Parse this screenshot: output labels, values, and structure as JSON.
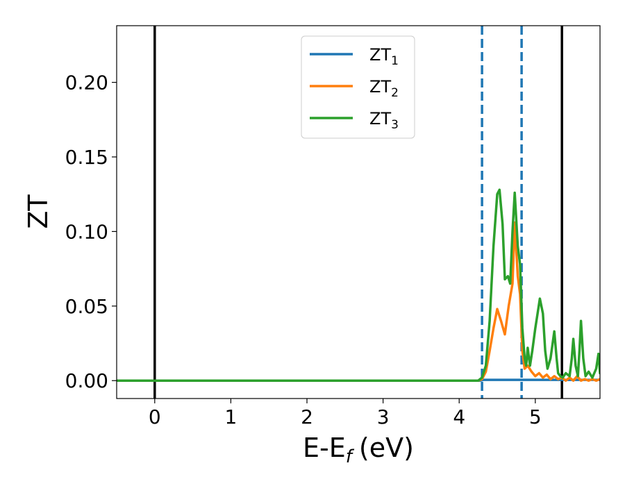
{
  "chart_data": {
    "type": "line",
    "title": "",
    "xlabel": "E-E",
    "xlabel_sub": "f",
    "xlabel_unit": "(eV)",
    "ylabel": "ZT",
    "xlim": [
      -0.5,
      5.85
    ],
    "ylim": [
      -0.012,
      0.238
    ],
    "xticks": [
      0,
      1,
      2,
      3,
      4,
      5
    ],
    "yticks": [
      0.0,
      0.05,
      0.1,
      0.15,
      0.2
    ],
    "xtick_labels": [
      "0",
      "1",
      "2",
      "3",
      "4",
      "5"
    ],
    "ytick_labels": [
      "0.00",
      "0.05",
      "0.10",
      "0.15",
      "0.20"
    ],
    "grid": false,
    "legend_position": "top-center",
    "vlines": [
      {
        "x": 0.0,
        "style": "solid",
        "color": "#000000"
      },
      {
        "x": 5.35,
        "style": "solid",
        "color": "#000000"
      },
      {
        "x": 4.3,
        "style": "dashed",
        "color": "#1f77b4"
      },
      {
        "x": 4.82,
        "style": "dashed",
        "color": "#1f77b4"
      }
    ],
    "series": [
      {
        "name": "ZT",
        "subscript": "1",
        "color": "#1f77b4",
        "x": [
          -0.5,
          4.28,
          4.32,
          5.85
        ],
        "y": [
          0.0,
          0.0,
          0.0005,
          0.0005
        ]
      },
      {
        "name": "ZT",
        "subscript": "2",
        "color": "#ff7f0e",
        "x": [
          -0.5,
          4.25,
          4.3,
          4.35,
          4.4,
          4.45,
          4.5,
          4.55,
          4.6,
          4.65,
          4.7,
          4.73,
          4.77,
          4.8,
          4.83,
          4.86,
          4.9,
          4.95,
          5.0,
          5.05,
          5.1,
          5.15,
          5.2,
          5.25,
          5.3,
          5.35,
          5.4,
          5.45,
          5.5,
          5.55,
          5.6,
          5.65,
          5.7,
          5.75,
          5.8,
          5.85
        ],
        "y": [
          0.0,
          0.0,
          0.001,
          0.006,
          0.02,
          0.035,
          0.048,
          0.04,
          0.031,
          0.05,
          0.065,
          0.106,
          0.07,
          0.058,
          0.02,
          0.008,
          0.01,
          0.006,
          0.003,
          0.005,
          0.002,
          0.004,
          0.001,
          0.003,
          0.001,
          0.002,
          0.0,
          0.002,
          0.0,
          0.003,
          0.0,
          0.001,
          0.0,
          0.001,
          0.0,
          0.001
        ]
      },
      {
        "name": "ZT",
        "subscript": "3",
        "color": "#2ca02c",
        "x": [
          -0.5,
          4.25,
          4.3,
          4.35,
          4.4,
          4.45,
          4.5,
          4.53,
          4.57,
          4.6,
          4.64,
          4.67,
          4.7,
          4.73,
          4.77,
          4.8,
          4.83,
          4.86,
          4.88,
          4.9,
          4.93,
          4.96,
          5.0,
          5.03,
          5.06,
          5.1,
          5.13,
          5.16,
          5.2,
          5.25,
          5.28,
          5.3,
          5.33,
          5.36,
          5.4,
          5.45,
          5.48,
          5.5,
          5.53,
          5.56,
          5.58,
          5.6,
          5.63,
          5.66,
          5.7,
          5.75,
          5.8,
          5.83,
          5.85
        ],
        "y": [
          0.0,
          0.0,
          0.002,
          0.01,
          0.04,
          0.09,
          0.125,
          0.128,
          0.105,
          0.068,
          0.07,
          0.065,
          0.1,
          0.126,
          0.09,
          0.078,
          0.035,
          0.015,
          0.01,
          0.022,
          0.01,
          0.02,
          0.035,
          0.045,
          0.055,
          0.045,
          0.02,
          0.008,
          0.015,
          0.033,
          0.015,
          0.005,
          0.003,
          0.002,
          0.005,
          0.003,
          0.015,
          0.028,
          0.01,
          0.003,
          0.02,
          0.04,
          0.015,
          0.003,
          0.006,
          0.002,
          0.008,
          0.018,
          0.005
        ]
      }
    ]
  }
}
